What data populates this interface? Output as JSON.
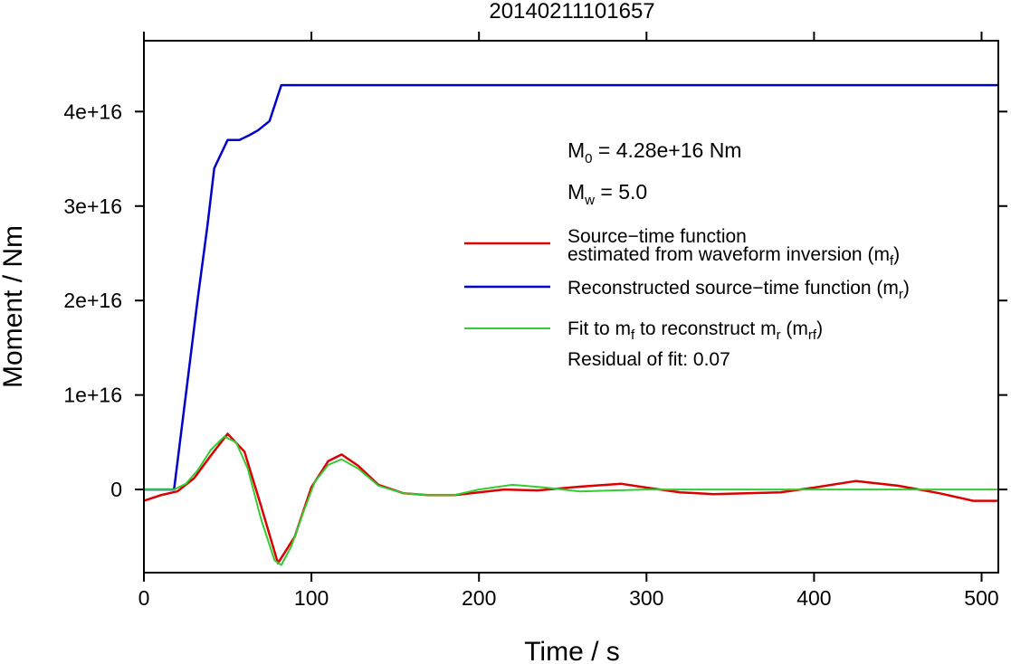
{
  "chart_data": {
    "type": "line",
    "title": "20140211101657",
    "xlabel": "Time / s",
    "ylabel": "Moment / Nm",
    "xlim": [
      0,
      510
    ],
    "ylim": [
      -8800000000000000.0,
      4.75e+16
    ],
    "x_ticks": [
      0,
      100,
      200,
      300,
      400,
      500
    ],
    "x_tick_labels": [
      "0",
      "100",
      "200",
      "300",
      "400",
      "500"
    ],
    "y_ticks": [
      0,
      1e+16,
      2e+16,
      3e+16,
      4e+16
    ],
    "y_tick_labels": [
      "0",
      "1e+16",
      "2e+16",
      "3e+16",
      "4e+16"
    ],
    "grid": false,
    "legend_position": "right",
    "annotations": {
      "m0": {
        "prefix": "M",
        "sub": "0",
        "text": " = 4.28e+16 Nm"
      },
      "mw": {
        "prefix": "M",
        "sub": "w",
        "text": " = 5.0"
      },
      "residual": "Residual of fit: 0.07"
    },
    "legend": {
      "red": {
        "line1": "Source−time function",
        "line2": "estimated from waveform inversion (m",
        "sub": "f",
        "close": ")"
      },
      "blue": {
        "text": "Reconstructed source−time function (m",
        "sub": "r",
        "close": ")"
      },
      "green": {
        "text1": "Fit to m",
        "sub1": "f",
        "text2": " to reconstruct m",
        "sub2": "r",
        "text3": " (m",
        "sub3": "rf",
        "close": ")"
      }
    },
    "series": [
      {
        "color": "#dd0000",
        "x": [
          0,
          10,
          20,
          30,
          40,
          50,
          60,
          70,
          80,
          90,
          100,
          110,
          118,
          128,
          140,
          155,
          170,
          185,
          200,
          215,
          235,
          260,
          285,
          300,
          320,
          340,
          360,
          380,
          400,
          425,
          450,
          475,
          495,
          510
        ],
        "y": [
          -1200000000000000.0,
          -600000000000000.0,
          -200000000000000.0,
          1200000000000000.0,
          3600000000000000.0,
          5900000000000000.0,
          4000000000000000.0,
          -1800000000000000.0,
          -7800000000000000.0,
          -5000000000000000.0,
          250000000000000.0,
          3000000000000000.0,
          3700000000000000.0,
          2500000000000000.0,
          500000000000000.0,
          -400000000000000.0,
          -600000000000000.0,
          -600000000000000.0,
          -300000000000000.0,
          0,
          -100000000000000.0,
          300000000000000.0,
          600000000000000.0,
          200000000000000.0,
          -300000000000000.0,
          -500000000000000.0,
          -400000000000000.0,
          -300000000000000.0,
          200000000000000.0,
          900000000000000.0,
          400000000000000.0,
          -400000000000000.0,
          -1200000000000000.0,
          -1200000000000000.0
        ]
      },
      {
        "color": "#0000cc",
        "x": [
          0,
          18,
          25,
          32,
          38,
          42,
          50,
          57,
          63,
          68,
          75,
          82,
          100,
          200,
          300,
          400,
          510
        ],
        "y": [
          0,
          0,
          1e+16,
          2e+16,
          2.8e+16,
          3.4e+16,
          3.7e+16,
          3.7e+16,
          3.75e+16,
          3.8e+16,
          3.9e+16,
          4.28e+16,
          4.28e+16,
          4.28e+16,
          4.28e+16,
          4.28e+16,
          4.28e+16
        ]
      },
      {
        "color": "#33cc33",
        "x": [
          0,
          18,
          25,
          32,
          40,
          48,
          55,
          62,
          70,
          78,
          82,
          88,
          95,
          102,
          110,
          118,
          128,
          140,
          155,
          170,
          185,
          200,
          220,
          240,
          260,
          280,
          300,
          320,
          340,
          360,
          400,
          450,
          510
        ],
        "y": [
          0,
          0,
          600000000000000.0,
          2000000000000000.0,
          4200000000000000.0,
          5600000000000000.0,
          5000000000000000.0,
          2200000000000000.0,
          -3200000000000000.0,
          -7500000000000000.0,
          -8000000000000000.0,
          -6000000000000000.0,
          -2500000000000000.0,
          800000000000000.0,
          2600000000000000.0,
          3200000000000000.0,
          2200000000000000.0,
          400000000000000.0,
          -400000000000000.0,
          -600000000000000.0,
          -600000000000000.0,
          0,
          500000000000000.0,
          200000000000000.0,
          -200000000000000.0,
          -100000000000000.0,
          0,
          0,
          0,
          0,
          0,
          0,
          0
        ]
      }
    ]
  }
}
